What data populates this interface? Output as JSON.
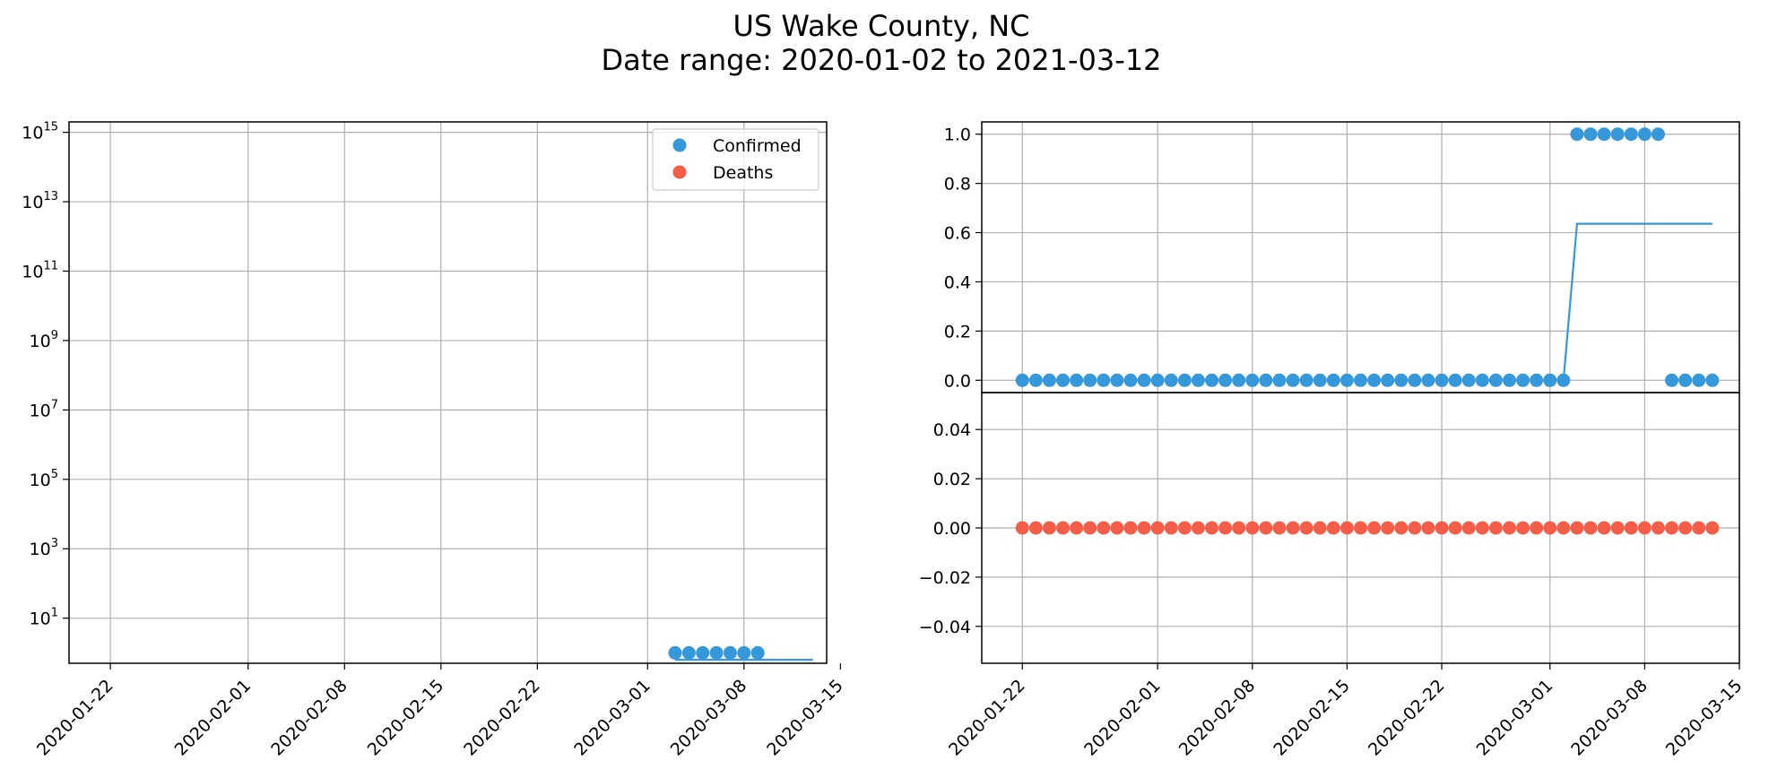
{
  "title": {
    "line1": "US Wake County, NC",
    "line2": "Date range: 2020-01-02 to 2021-03-12"
  },
  "colors": {
    "confirmed": "#3498db",
    "deaths": "#f45d48",
    "grid": "#b0b0b0",
    "axis": "#000000"
  },
  "chart_data": [
    {
      "type": "scatter",
      "panel": "left",
      "yscale": "log",
      "ylim_exponents": [
        -0.3,
        15.3
      ],
      "yticks": [
        {
          "base": "10",
          "exp": "1",
          "value": 10
        },
        {
          "base": "10",
          "exp": "3",
          "value": 1000
        },
        {
          "base": "10",
          "exp": "5",
          "value": 100000
        },
        {
          "base": "10",
          "exp": "7",
          "value": 10000000
        },
        {
          "base": "10",
          "exp": "9",
          "value": 1000000000
        },
        {
          "base": "10",
          "exp": "11",
          "value": 100000000000
        },
        {
          "base": "10",
          "exp": "13",
          "value": 10000000000000
        },
        {
          "base": "10",
          "exp": "15",
          "value": 1000000000000000
        }
      ],
      "xlim": [
        "2020-01-19",
        "2020-03-14"
      ],
      "xticks": [
        "2020-01-22",
        "2020-02-01",
        "2020-02-08",
        "2020-02-15",
        "2020-02-22",
        "2020-03-01",
        "2020-03-08",
        "2020-03-15"
      ],
      "grid": true,
      "legend": {
        "position": "top-right",
        "entries": [
          "Confirmed",
          "Deaths"
        ]
      },
      "series": [
        {
          "name": "Confirmed",
          "points": [
            {
              "x": "2020-03-03",
              "y": 1
            },
            {
              "x": "2020-03-04",
              "y": 1
            },
            {
              "x": "2020-03-05",
              "y": 1
            },
            {
              "x": "2020-03-06",
              "y": 1
            },
            {
              "x": "2020-03-07",
              "y": 1
            },
            {
              "x": "2020-03-08",
              "y": 1
            },
            {
              "x": "2020-03-09",
              "y": 1
            }
          ],
          "trend": [
            {
              "x": "2020-03-03",
              "y": 0.63
            },
            {
              "x": "2020-03-13",
              "y": 0.63
            }
          ]
        }
      ]
    },
    {
      "type": "scatter",
      "panel": "right-top",
      "ylim": [
        -0.05,
        1.05
      ],
      "yticks": [
        "0.0",
        "0.2",
        "0.4",
        "0.6",
        "0.8",
        "1.0"
      ],
      "xlim": [
        "2020-01-19",
        "2020-03-15"
      ],
      "grid": true,
      "series": [
        {
          "name": "Confirmed",
          "start": "2020-01-22",
          "values": [
            0,
            0,
            0,
            0,
            0,
            0,
            0,
            0,
            0,
            0,
            0,
            0,
            0,
            0,
            0,
            0,
            0,
            0,
            0,
            0,
            0,
            0,
            0,
            0,
            0,
            0,
            0,
            0,
            0,
            0,
            0,
            0,
            0,
            0,
            0,
            0,
            0,
            0,
            0,
            0,
            0,
            1,
            1,
            1,
            1,
            1,
            1,
            1,
            0,
            0,
            0,
            0
          ],
          "trend": [
            {
              "x": "2020-03-02",
              "y": 0
            },
            {
              "x": "2020-03-03",
              "y": 0.636
            },
            {
              "x": "2020-03-13",
              "y": 0.636
            }
          ]
        }
      ]
    },
    {
      "type": "scatter",
      "panel": "right-bottom",
      "ylim": [
        -0.055,
        0.055
      ],
      "yticks": [
        "−0.04",
        "−0.02",
        "0.00",
        "0.02",
        "0.04"
      ],
      "xlim": [
        "2020-01-19",
        "2020-03-15"
      ],
      "xticks": [
        "2020-01-22",
        "2020-02-01",
        "2020-02-08",
        "2020-02-15",
        "2020-02-22",
        "2020-03-01",
        "2020-03-08",
        "2020-03-15"
      ],
      "grid": true,
      "series": [
        {
          "name": "Deaths",
          "start": "2020-01-22",
          "values": [
            0,
            0,
            0,
            0,
            0,
            0,
            0,
            0,
            0,
            0,
            0,
            0,
            0,
            0,
            0,
            0,
            0,
            0,
            0,
            0,
            0,
            0,
            0,
            0,
            0,
            0,
            0,
            0,
            0,
            0,
            0,
            0,
            0,
            0,
            0,
            0,
            0,
            0,
            0,
            0,
            0,
            0,
            0,
            0,
            0,
            0,
            0,
            0,
            0,
            0,
            0,
            0
          ]
        }
      ]
    }
  ]
}
